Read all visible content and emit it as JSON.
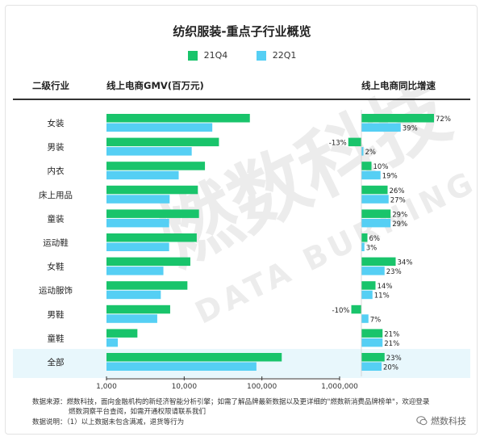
{
  "header": {
    "title": "纺织服装-重点子行业概览",
    "col_category": "二级行业",
    "col_gmv": "线上电商GMV(百万元)",
    "col_growth": "线上电商同比增速"
  },
  "footer": {
    "source_line1": "数据来源：燃数科技，面向金融机构的新经济智能分析引擎；如需了解品牌最新数据以及更详细的\"燃数新消费品牌榜单\"，欢迎登录",
    "source_line2": "燃数洞察平台查阅，如需开通权限请联系我们",
    "note": "数据说明：（1）以上数据未包含满减，退货等行为",
    "brand": "燃数科技"
  },
  "watermark": {
    "cn": "燃数科技",
    "en": "DATA BURNING"
  },
  "colors": {
    "q4": "#19c46b",
    "q1": "#55cff4",
    "highlight": "#e8f7fc",
    "axis": "#333333"
  },
  "chart_data": [
    {
      "type": "bar",
      "orientation": "horizontal",
      "scale": "log",
      "xlim": [
        1000,
        1000000
      ],
      "xticks": [
        "1,000",
        "10,000",
        "100,000",
        "1,000,000"
      ],
      "categories": [
        "女装",
        "男装",
        "内衣",
        "床上用品",
        "童装",
        "运动鞋",
        "女鞋",
        "运动服饰",
        "男鞋",
        "童鞋",
        "全部"
      ],
      "series": [
        {
          "name": "21Q4",
          "values": [
            70000,
            28000,
            18500,
            15000,
            15500,
            14500,
            12000,
            11000,
            6600,
            2500,
            180000
          ]
        },
        {
          "name": "22Q1",
          "values": [
            23000,
            12500,
            8500,
            6500,
            6400,
            6400,
            5400,
            5000,
            4500,
            1400,
            85000
          ]
        }
      ],
      "legend_position": "top-center"
    },
    {
      "type": "bar",
      "orientation": "horizontal",
      "unit": "%",
      "categories": [
        "女装",
        "男装",
        "内衣",
        "床上用品",
        "童装",
        "运动鞋",
        "女鞋",
        "运动服饰",
        "男鞋",
        "童鞋",
        "全部"
      ],
      "series": [
        {
          "name": "21Q4",
          "values": [
            72,
            -13,
            10,
            26,
            29,
            6,
            34,
            14,
            -10,
            21,
            23
          ]
        },
        {
          "name": "22Q1",
          "values": [
            39,
            2,
            19,
            27,
            29,
            3,
            23,
            11,
            7,
            21,
            20
          ]
        }
      ]
    }
  ]
}
